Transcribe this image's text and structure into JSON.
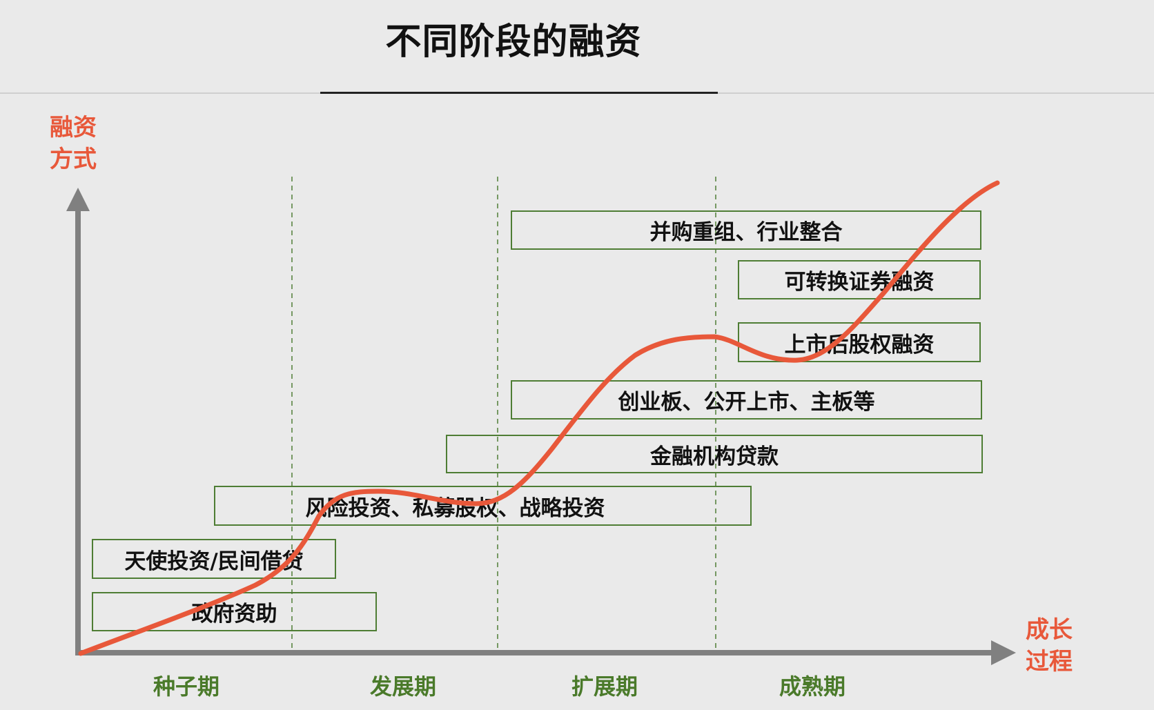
{
  "title": "不同阶段的融资",
  "y_axis_label": [
    "融资",
    "方式"
  ],
  "x_axis_label": [
    "成长",
    "过程"
  ],
  "stages": [
    "种子期",
    "发展期",
    "扩展期",
    "成熟期"
  ],
  "boxes": [
    "并购重组、行业整合",
    "可转换证券融资",
    "上市后股权融资",
    "创业板、公开上市、主板等",
    "金融机构贷款",
    "风险投资、私募股权、战略投资",
    "天使投资/民间借贷",
    "政府资助"
  ],
  "colors": {
    "curve": "#e8583a",
    "axis": "#808080",
    "box_border": "#4e7d34",
    "stage_text": "#4a7a2a",
    "axis_label": "#e8583a"
  }
}
